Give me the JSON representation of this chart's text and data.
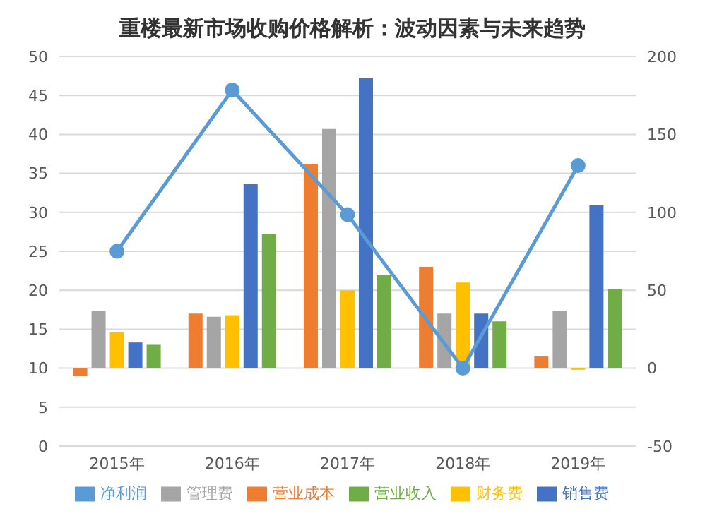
{
  "chart_data": {
    "type": "bar",
    "title": "重楼最新市场收购价格解析：波动因素与未来趋势",
    "categories": [
      "2015年",
      "2016年",
      "2017年",
      "2018年",
      "2019年"
    ],
    "series": [
      {
        "name": "营业成本",
        "color": "#ed7d31",
        "axis": "y2",
        "values": [
          -5,
          35,
          131,
          65,
          7.5
        ]
      },
      {
        "name": "管理费",
        "color": "#a5a5a5",
        "axis": "y2",
        "values": [
          36.5,
          33,
          153.5,
          35,
          37
        ]
      },
      {
        "name": "财务费",
        "color": "#ffc000",
        "axis": "y2",
        "values": [
          23,
          34,
          50,
          55,
          -1
        ]
      },
      {
        "name": "销售费",
        "color": "#4472c4",
        "axis": "y2",
        "values": [
          16.5,
          118,
          186,
          35,
          104.5
        ]
      },
      {
        "name": "营业收入",
        "color": "#70ad47",
        "axis": "y2",
        "values": [
          15,
          86,
          60,
          30,
          50.5
        ]
      },
      {
        "name": "净利润",
        "type": "line",
        "color": "#5b9bd5",
        "marker": "circle",
        "values": [
          25,
          45.7,
          29.7,
          10,
          36
        ]
      }
    ],
    "ylim": [
      0,
      50
    ],
    "yticks": [
      0,
      5,
      10,
      15,
      20,
      25,
      30,
      35,
      40,
      45,
      50
    ],
    "y2lim": [
      -50,
      200
    ],
    "y2ticks": [
      -50,
      0,
      50,
      100,
      150,
      200
    ],
    "grid": "y",
    "legend": "bottom"
  }
}
